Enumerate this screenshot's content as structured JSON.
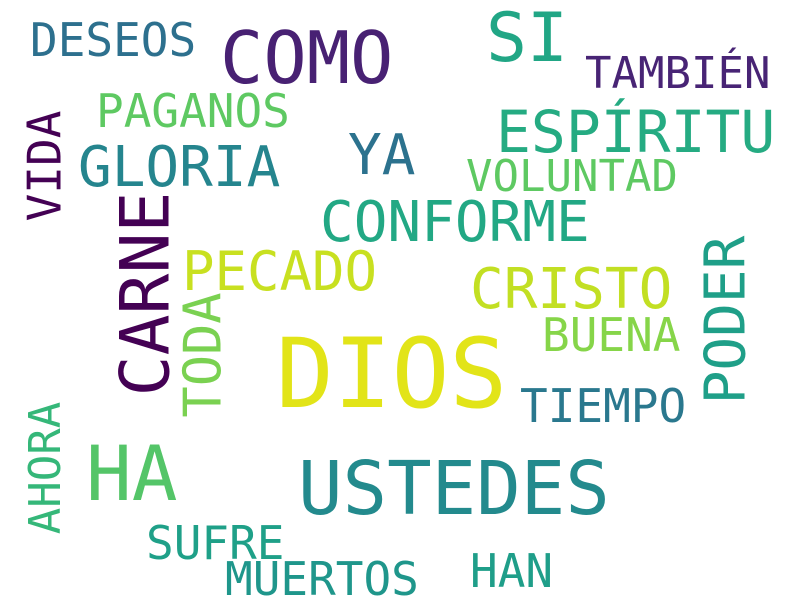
{
  "words": {
    "deseos": {
      "text": "DESEOS",
      "color": "#2d708e"
    },
    "como": {
      "text": "COMO",
      "color": "#482173"
    },
    "si": {
      "text": "SI",
      "color": "#21a685"
    },
    "tambien": {
      "text": "TAMBIÉN",
      "color": "#482475"
    },
    "paganos": {
      "text": "PAGANOS",
      "color": "#5ec962"
    },
    "espiritu": {
      "text": "ESPÍRITU",
      "color": "#25ab82"
    },
    "vida": {
      "text": "VIDA",
      "color": "#440154"
    },
    "gloria": {
      "text": "GLORIA",
      "color": "#25858e"
    },
    "ya": {
      "text": "YA",
      "color": "#2c728e"
    },
    "voluntad": {
      "text": "VOLUNTAD",
      "color": "#5ec962"
    },
    "carne": {
      "text": "CARNE",
      "color": "#440154"
    },
    "conforme": {
      "text": "CONFORME",
      "color": "#22a884"
    },
    "pecado": {
      "text": "PECADO",
      "color": "#c8e020"
    },
    "cristo": {
      "text": "CRISTO",
      "color": "#c2df23"
    },
    "poder": {
      "text": "PODER",
      "color": "#1f9f88"
    },
    "toda": {
      "text": "TODA",
      "color": "#7ad151"
    },
    "buena": {
      "text": "BUENA",
      "color": "#86d549"
    },
    "dios": {
      "text": "DIOS",
      "color": "#e2e418"
    },
    "tiempo": {
      "text": "TIEMPO",
      "color": "#2a788e"
    },
    "ahora": {
      "text": "AHORA",
      "color": "#35b779"
    },
    "ha": {
      "text": "HA",
      "color": "#54c568"
    },
    "ustedes": {
      "text": "USTEDES",
      "color": "#238a8d"
    },
    "sufre": {
      "text": "SUFRE",
      "color": "#1fa088"
    },
    "han": {
      "text": "HAN",
      "color": "#1f9e89"
    },
    "muertos": {
      "text": "MUERTOS",
      "color": "#1f968b"
    }
  }
}
